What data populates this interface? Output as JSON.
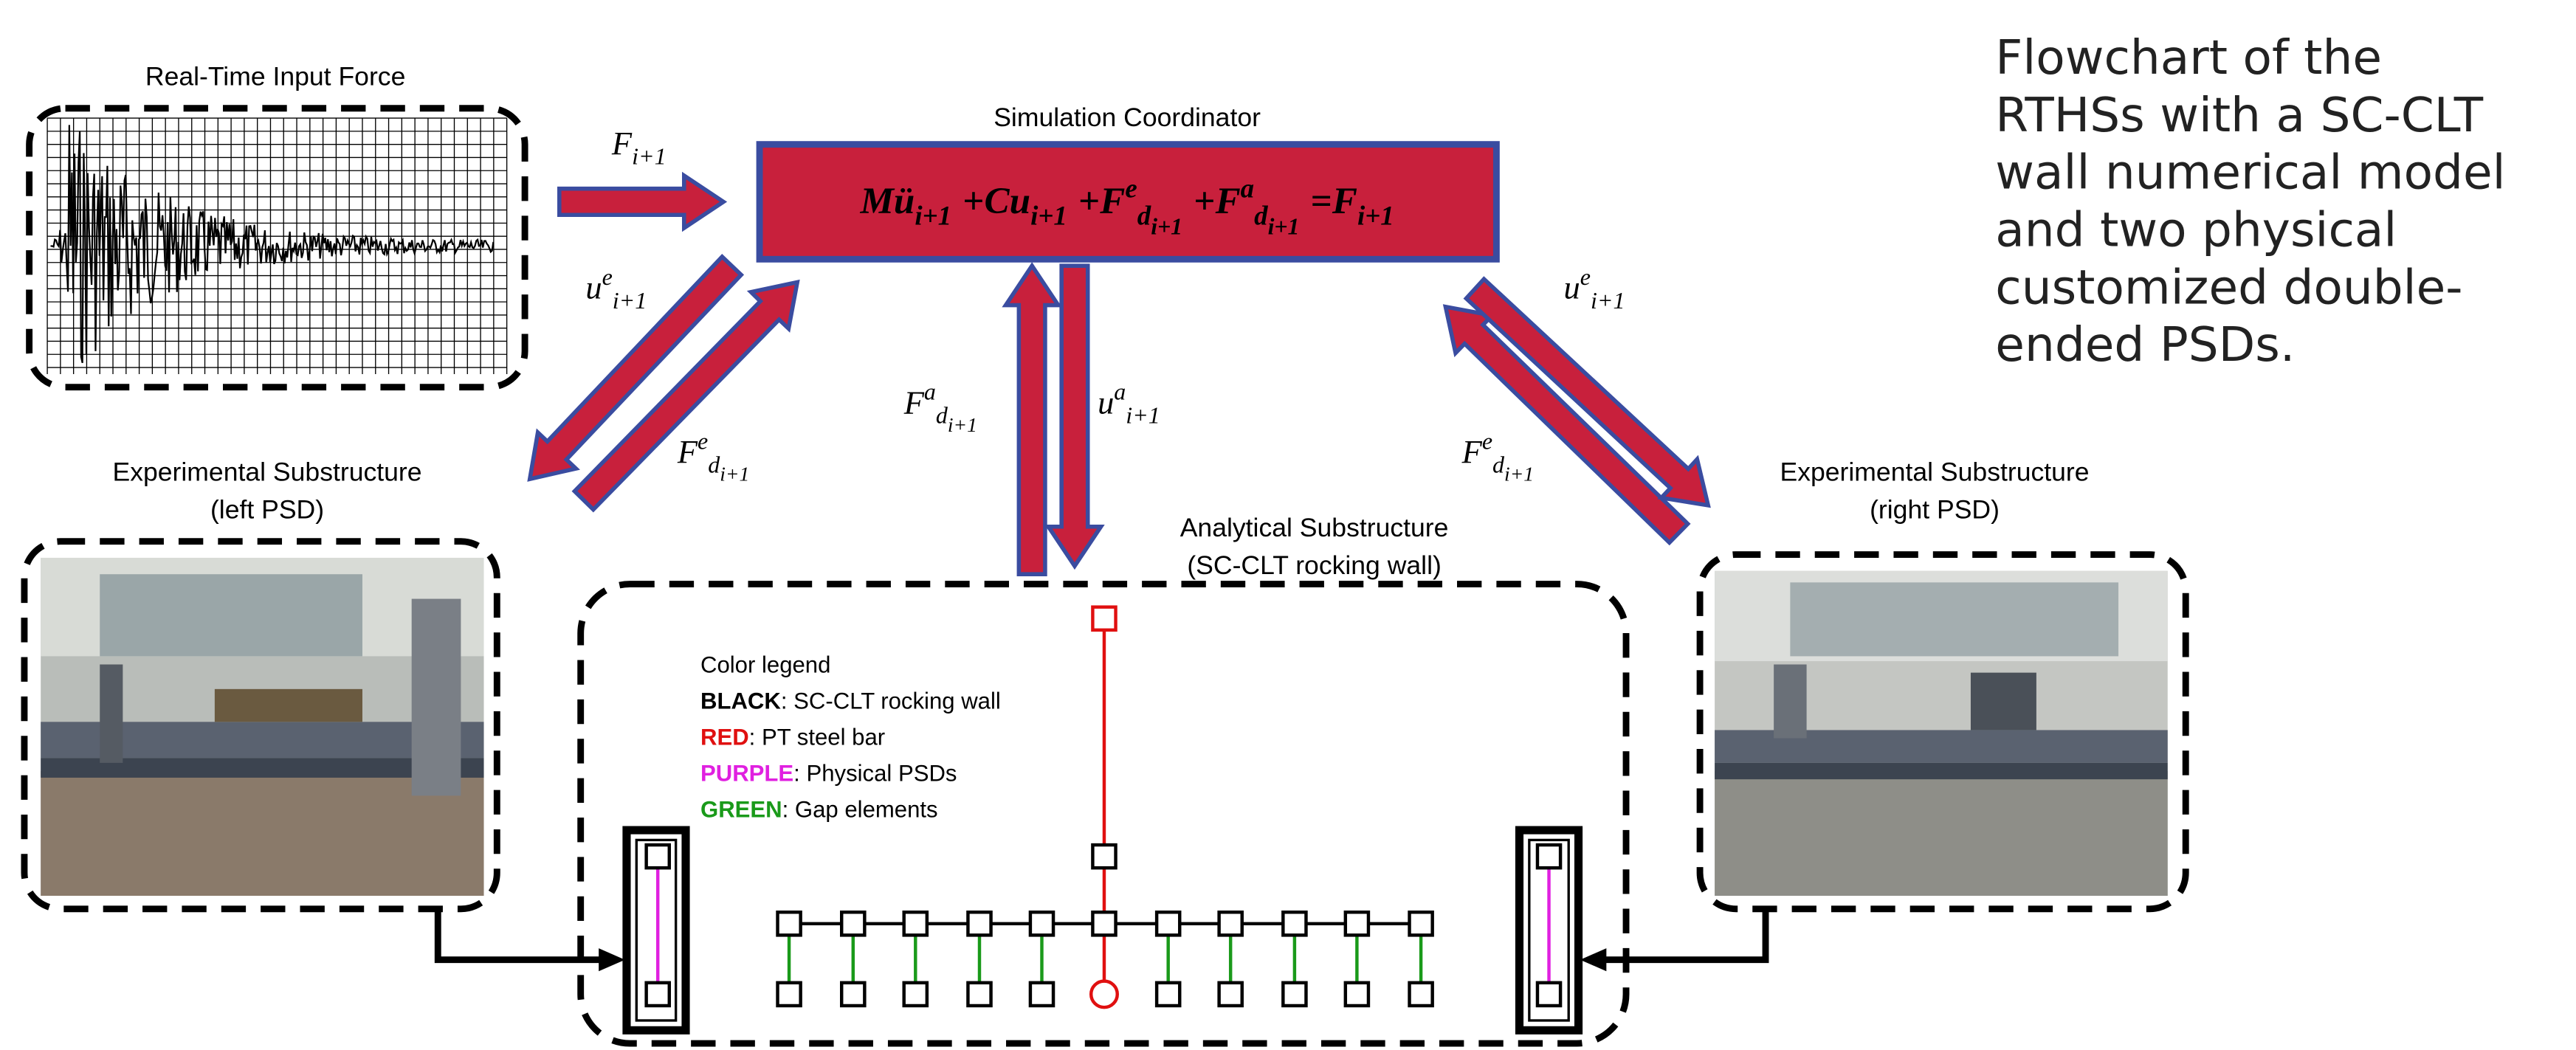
{
  "input_force": {
    "title": "Real-Time Input Force"
  },
  "coordinator": {
    "title": "Simulation Coordinator",
    "equation": [
      {
        "main": "Mü",
        "sub": "i+1"
      },
      "+",
      {
        "main": "Cu",
        "sub": "i+1"
      },
      "+",
      {
        "main": "F",
        "sup": "e",
        "sub": "d",
        "subsub": "i+1"
      },
      "+",
      {
        "main": "F",
        "sup": "a",
        "sub": "d",
        "subsub": "i+1"
      },
      "=",
      {
        "main": "F",
        "sub": "i+1"
      }
    ]
  },
  "arrow_labels": {
    "force_in": {
      "main": "F",
      "sub": "i+1"
    },
    "u_left": {
      "main": "u",
      "sup": "e",
      "sub": "i+1"
    },
    "f_left": {
      "main": "F",
      "sup": "e",
      "sub": "d",
      "subsub": "i+1"
    },
    "f_analytical": {
      "main": "F",
      "sup": "a",
      "sub": "d",
      "subsub": "i+1"
    },
    "u_analytical": {
      "main": "u",
      "sup": "a",
      "sub": "i+1"
    },
    "u_right": {
      "main": "u",
      "sup": "e",
      "sub": "i+1"
    },
    "f_right": {
      "main": "F",
      "sup": "e",
      "sub": "d",
      "subsub": "i+1"
    }
  },
  "left_psd": {
    "title": [
      "Experimental Substructure",
      "(left PSD)"
    ]
  },
  "right_psd": {
    "title": [
      "Experimental Substructure",
      "(right PSD)"
    ]
  },
  "analytical": {
    "title": [
      "Analytical Substructure",
      "(SC-CLT rocking wall)"
    ],
    "legend": {
      "title": "Color legend",
      "items": [
        {
          "key": "BLACK",
          "text": ": SC-CLT rocking wall",
          "color": "#000000"
        },
        {
          "key": "RED",
          "text": ": PT steel bar",
          "color": "#e01010"
        },
        {
          "key": "PURPLE",
          "text": ": Physical PSDs",
          "color": "#e020e0"
        },
        {
          "key": "GREEN",
          "text": ": Gap elements",
          "color": "#1a9a1a"
        }
      ]
    }
  },
  "caption": [
    "Flowchart of the",
    "RTHSs with a SC-CLT",
    "wall numerical model",
    "and two physical",
    "customized double-",
    "ended PSDs."
  ]
}
